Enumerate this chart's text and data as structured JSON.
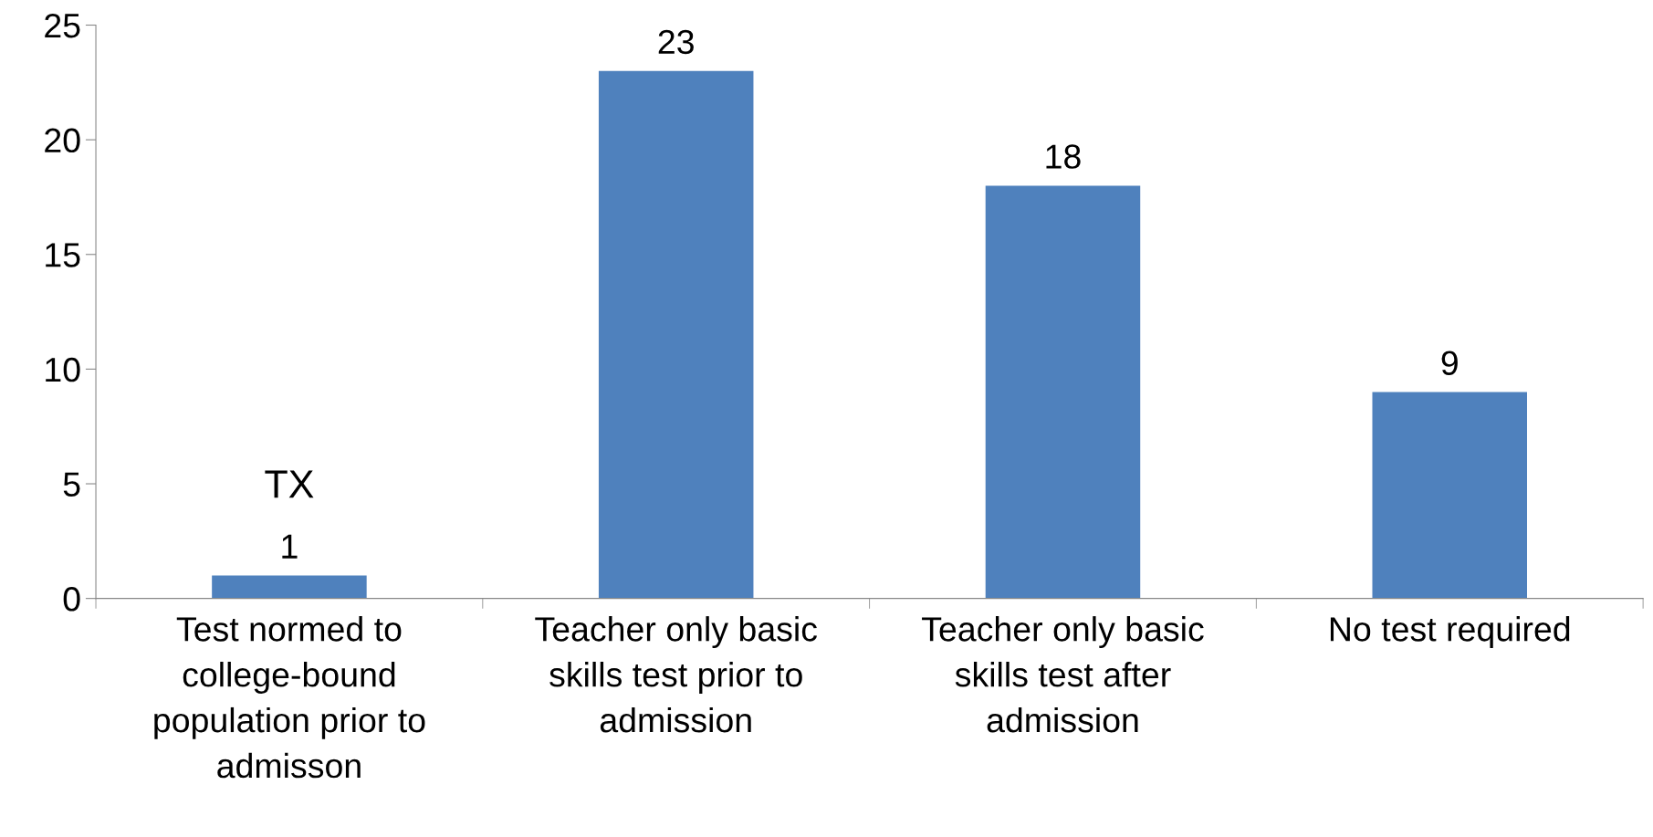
{
  "chart_data": {
    "type": "bar",
    "categories": [
      "Test normed to\ncollege-bound\npopulation prior to\nadmisson",
      "Teacher only basic\nskills test prior to\nadmission",
      "Teacher only basic\nskills test after\nadmission",
      "No test required"
    ],
    "values": [
      1,
      23,
      18,
      9
    ],
    "color": "#4f81bd",
    "ylim": [
      0,
      25
    ],
    "yticks": [
      0,
      5,
      10,
      15,
      20,
      25
    ],
    "data_labels": true,
    "annotations": [
      "TX"
    ]
  }
}
